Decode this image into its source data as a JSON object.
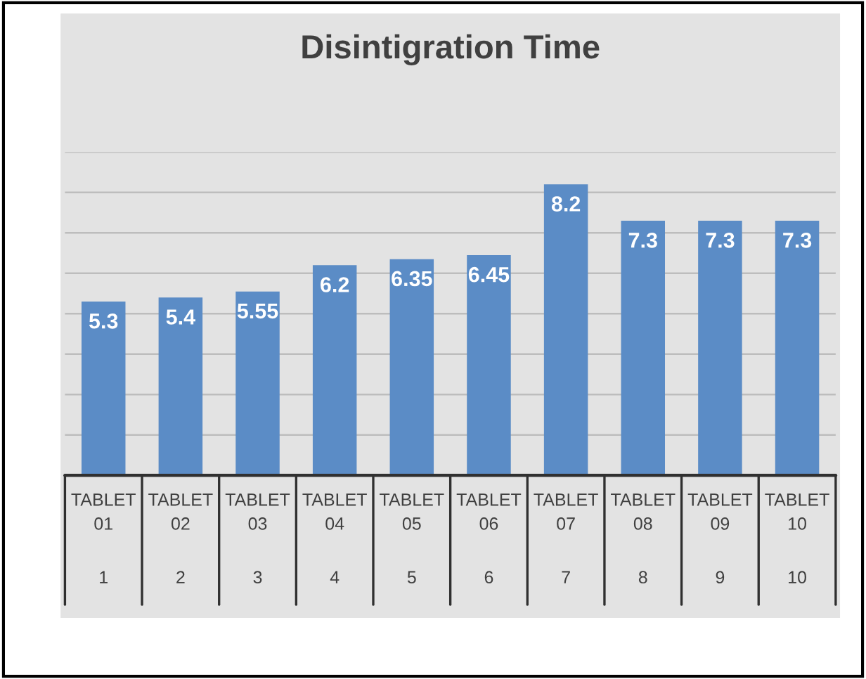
{
  "chart_data": {
    "type": "bar",
    "title": "Disintigration Time",
    "categories": [
      "TABLET 01\n1",
      "TABLET 02\n2",
      "TABLET 03\n3",
      "TABLET 04\n4",
      "TABLET 05\n5",
      "TABLET 06\n6",
      "TABLET 07\n7",
      "TABLET 08\n8",
      "TABLET 09\n9",
      "TABLET 10\n10"
    ],
    "values": [
      5.3,
      5.4,
      5.55,
      6.2,
      6.35,
      6.45,
      8.2,
      7.3,
      7.3,
      7.3
    ],
    "color": "#5b8cc6",
    "ylim": [
      1,
      9
    ],
    "yticks": [
      {
        "value": 1,
        "label": null
      },
      {
        "value": 2,
        "label": null
      },
      {
        "value": 3,
        "label": null
      },
      {
        "value": 4,
        "label": null
      },
      {
        "value": 5,
        "label": null
      },
      {
        "value": 6,
        "label": null
      },
      {
        "value": 7,
        "label": null
      },
      {
        "value": 8,
        "label": null
      },
      {
        "value": 9,
        "label": null
      }
    ],
    "grid": "y",
    "data_labels": true
  }
}
